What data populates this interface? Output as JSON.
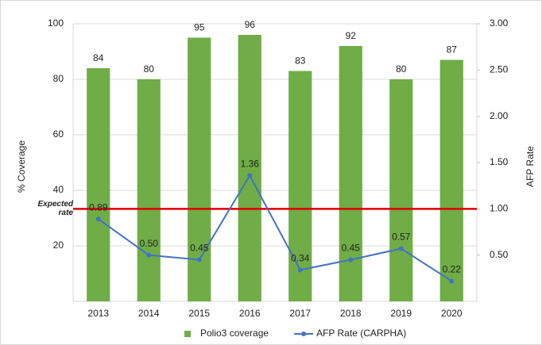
{
  "chart_data": {
    "type": "bar-line",
    "ylabel": "% Coverage",
    "y2label": "AFP Rate",
    "categories": [
      "2013",
      "2014",
      "2015",
      "2016",
      "2017",
      "2018",
      "2019",
      "2020"
    ],
    "series": [
      {
        "name": "Polio3 coverage",
        "type": "bar",
        "color": "#70ad47",
        "values": [
          84,
          80,
          95,
          96,
          83,
          92,
          80,
          87
        ]
      },
      {
        "name": "AFP Rate (CARPHA)",
        "type": "line",
        "axis": "y2",
        "color": "#4472c4",
        "values": [
          0.89,
          0.5,
          0.45,
          1.36,
          0.34,
          0.45,
          0.57,
          0.22
        ],
        "value_labels": [
          "0.89",
          "0.50",
          "0.45",
          "1.36",
          "0.34",
          "0.45",
          "0.57",
          "0.22"
        ]
      }
    ],
    "ylim": [
      0,
      100
    ],
    "yticks": [
      20,
      40,
      60,
      80,
      100
    ],
    "y2lim": [
      0,
      3
    ],
    "y2ticks": [
      {
        "value": 0.5,
        "label": "0.50"
      },
      {
        "value": 1,
        "label": "1.00"
      },
      {
        "value": 1.5,
        "label": "1.50"
      },
      {
        "value": 2,
        "label": "2.00"
      },
      {
        "value": 2.5,
        "label": "2.50"
      },
      {
        "value": 3,
        "label": "3.00"
      }
    ],
    "grid": true,
    "legend": "bottom",
    "reference_line": {
      "value": 1,
      "axis": "y2",
      "label": "Expected rate",
      "color": "#e00000"
    }
  }
}
